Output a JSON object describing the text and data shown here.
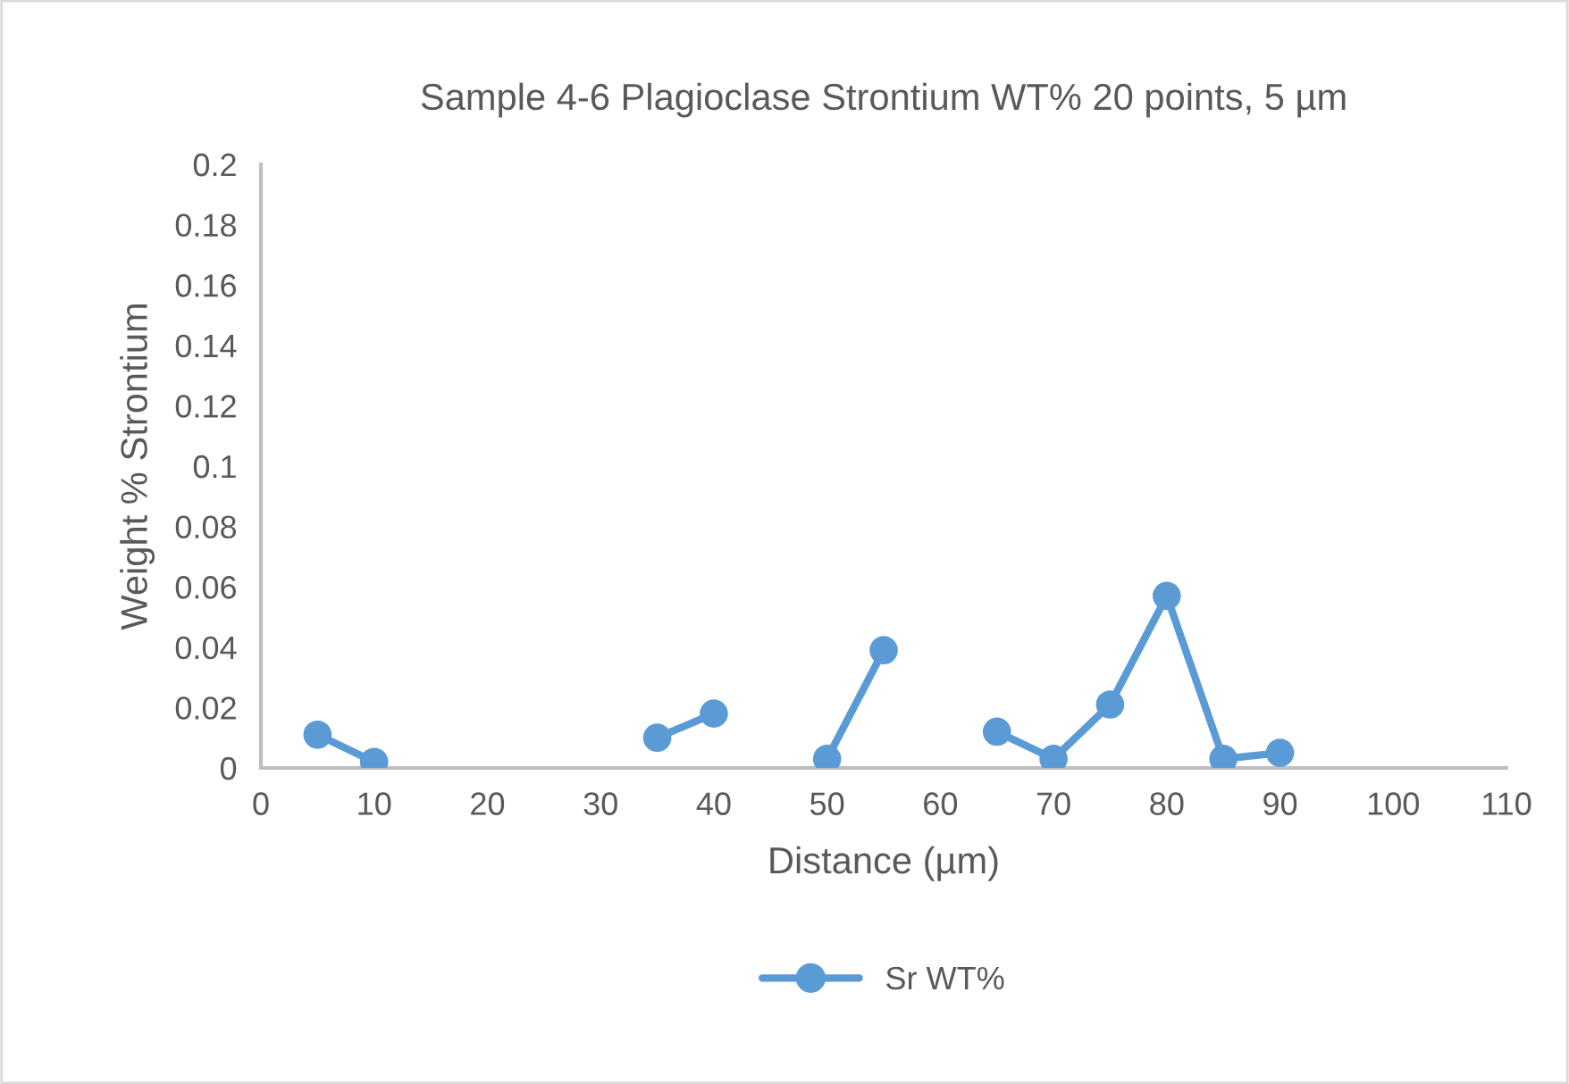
{
  "chart_data": {
    "type": "line",
    "title": "Sample 4-6 Plagioclase Strontium WT% 20 points, 5 µm",
    "xlabel": "Distance (µm)",
    "ylabel": "Weight % Strontium",
    "x": [
      5,
      10,
      15,
      20,
      25,
      30,
      35,
      40,
      45,
      50,
      55,
      60,
      65,
      70,
      75,
      80,
      85,
      90
    ],
    "series": [
      {
        "name": "Sr WT%",
        "color": "#5b9bd5",
        "values": [
          0.011,
          0.002,
          null,
          null,
          null,
          null,
          0.01,
          0.018,
          null,
          0.003,
          0.039,
          null,
          0.012,
          0.003,
          0.021,
          0.057,
          0.003,
          0.005
        ]
      }
    ],
    "xlim": [
      0,
      110
    ],
    "xticks": [
      0,
      10,
      20,
      30,
      40,
      50,
      60,
      70,
      80,
      90,
      100,
      110
    ],
    "ylim": [
      0,
      0.2
    ],
    "yticks": [
      {
        "value": 0,
        "label": "0"
      },
      {
        "value": 0.02,
        "label": "0.02"
      },
      {
        "value": 0.04,
        "label": "0.04"
      },
      {
        "value": 0.06,
        "label": "0.06"
      },
      {
        "value": 0.08,
        "label": "0.08"
      },
      {
        "value": 0.1,
        "label": "0.1"
      },
      {
        "value": 0.12,
        "label": "0.12"
      },
      {
        "value": 0.14,
        "label": "0.14"
      },
      {
        "value": 0.16,
        "label": "0.16"
      },
      {
        "value": 0.18,
        "label": "0.18"
      },
      {
        "value": 0.2,
        "label": "0.2"
      }
    ],
    "marker": "circle",
    "line_style": "solid",
    "grid": false,
    "legend": "bottom"
  }
}
